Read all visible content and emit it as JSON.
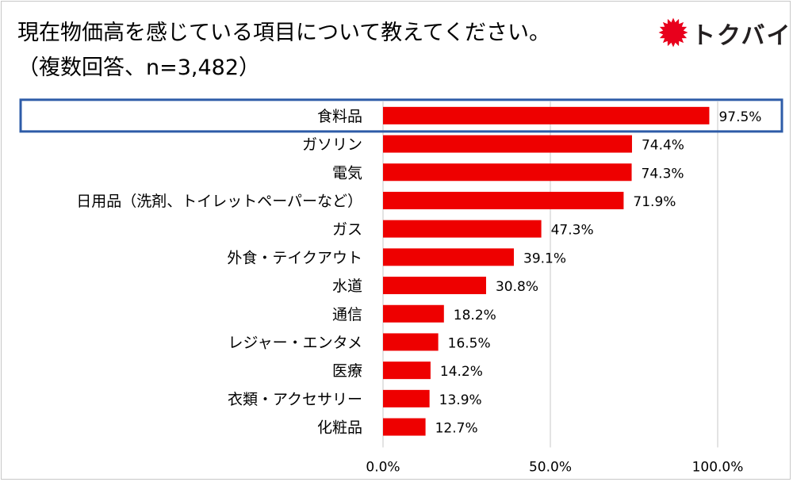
{
  "title": {
    "line1": "現在物価高を感じている項目について教えてください。",
    "line2": "（複数回答、n=3,482）"
  },
  "logo": {
    "text": "トクバイ",
    "icon": "red-sun-icon",
    "color": "#e8001c"
  },
  "colors": {
    "bar": "#ee0000",
    "highlight_border": "#2e5ca8",
    "grid": "#d0d0d0"
  },
  "chart_data": {
    "type": "bar",
    "orientation": "horizontal",
    "categories": [
      "食料品",
      "ガソリン",
      "電気",
      "日用品（洗剤、トイレットペーパーなど）",
      "ガス",
      "外食・テイクアウト",
      "水道",
      "通信",
      "レジャー・エンタメ",
      "医療",
      "衣類・アクセサリー",
      "化粧品"
    ],
    "values": [
      97.5,
      74.4,
      74.3,
      71.9,
      47.3,
      39.1,
      30.8,
      18.2,
      16.5,
      14.2,
      13.9,
      12.7
    ],
    "value_labels": [
      "97.5%",
      "74.4%",
      "74.3%",
      "71.9%",
      "47.3%",
      "39.1%",
      "30.8%",
      "18.2%",
      "16.5%",
      "14.2%",
      "13.9%",
      "12.7%"
    ],
    "xlim": [
      0,
      100
    ],
    "xticks": [
      0,
      50,
      100
    ],
    "xtick_labels": [
      "0.0%",
      "50.0%",
      "100.0%"
    ],
    "grid": true,
    "highlighted_category": "食料品"
  }
}
